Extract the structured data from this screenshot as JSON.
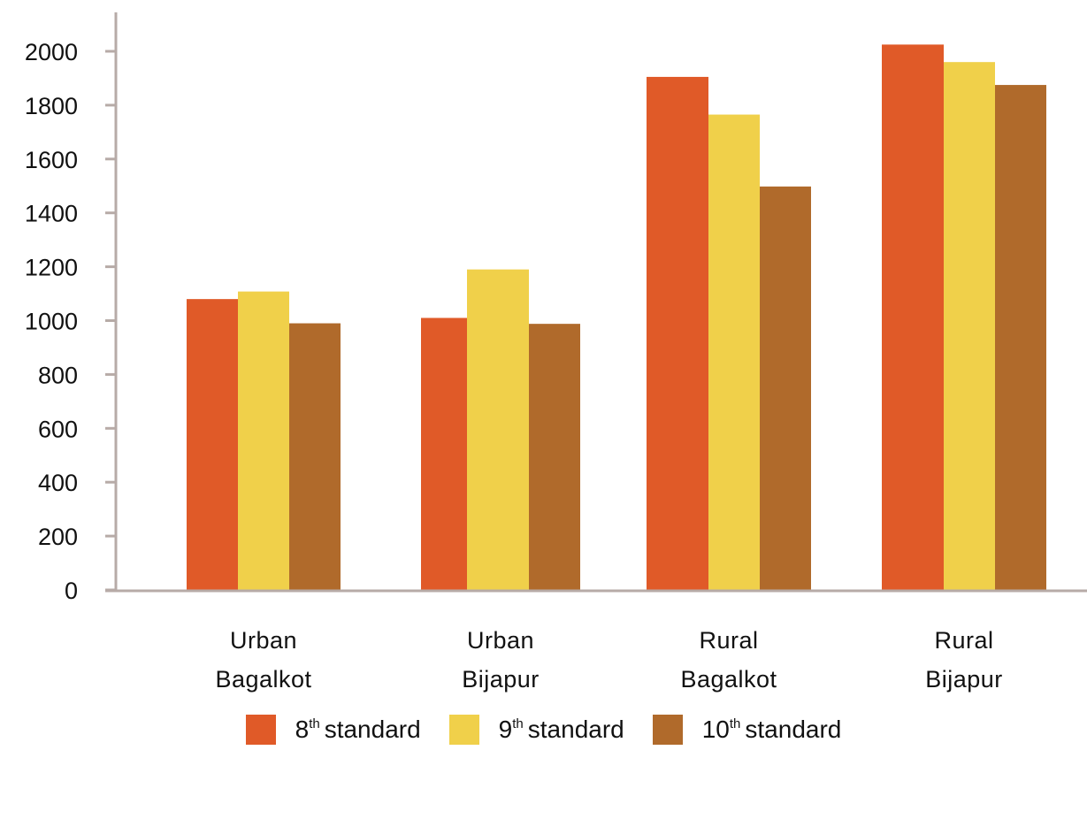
{
  "chart_data": {
    "type": "bar",
    "categories": [
      [
        "Urban",
        "Bagalkot"
      ],
      [
        "Urban",
        "Bijapur"
      ],
      [
        "Rural",
        "Bagalkot"
      ],
      [
        "Rural",
        "Bijapur"
      ]
    ],
    "series": [
      {
        "name": "8th standard",
        "ordinal": "8",
        "suffix": "th",
        "label": "standard",
        "color": "#E05A28",
        "values": [
          1080,
          1010,
          1905,
          2025
        ]
      },
      {
        "name": "9th standard",
        "ordinal": "9",
        "suffix": "th",
        "label": "standard",
        "color": "#F0D04A",
        "values": [
          1108,
          1190,
          1765,
          1960
        ]
      },
      {
        "name": "10th standard",
        "ordinal": "10",
        "suffix": "th",
        "label": "standard",
        "color": "#B06A2B",
        "values": [
          990,
          988,
          1498,
          1875
        ]
      }
    ],
    "yticks": [
      "0",
      "200",
      "400",
      "600",
      "800",
      "1000",
      "1200",
      "1400",
      "1600",
      "1800",
      "2000"
    ],
    "ylim": [
      0,
      2000
    ],
    "title": "",
    "xlabel": "",
    "ylabel": "",
    "grid": false,
    "legend_position": "bottom",
    "axis_color": "#B7ABA7"
  }
}
